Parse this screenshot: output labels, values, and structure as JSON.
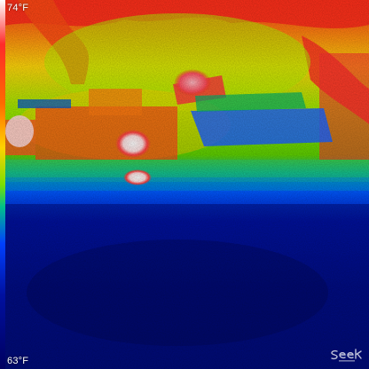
{
  "scale": {
    "max_label": "74°F",
    "min_label": "63°F"
  },
  "brand": {
    "logo_icon": "seek-thermal-logo-icon",
    "logo_text": "seek"
  },
  "palette": {
    "hot": "#ffffff",
    "red": "#ff2a2a",
    "orange": "#ff6a00",
    "yellow": "#ffd200",
    "green": "#7be000",
    "cool_blue": "#0040ff",
    "cold": "#000060"
  }
}
